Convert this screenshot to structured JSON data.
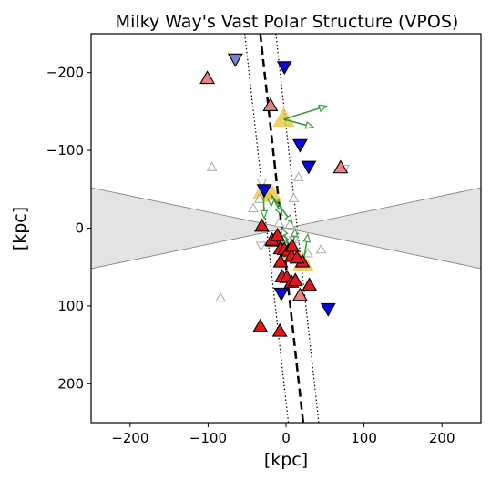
{
  "chart_data": {
    "type": "scatter",
    "title": "Milky Way's Vast Polar Structure (VPOS)",
    "xlabel": "[kpc]",
    "ylabel": "[kpc]",
    "xlim": [
      -250,
      250
    ],
    "ylim": [
      250,
      -250
    ],
    "y_inverted": true,
    "xticks": [
      -200,
      -100,
      0,
      100,
      200
    ],
    "yticks": [
      -200,
      -100,
      0,
      100,
      200
    ],
    "xtick_labels": [
      "−200",
      "−100",
      "0",
      "100",
      "200"
    ],
    "ytick_labels": [
      "−200",
      "−100",
      "0",
      "100",
      "200"
    ],
    "grid": false,
    "legend": "none",
    "obscured_region": {
      "color": "#e3e3e3",
      "left_edge_y": [
        -52,
        52
      ],
      "right_edge_y": [
        -52,
        52
      ],
      "apex": [
        0,
        0
      ]
    },
    "vpos_plane": {
      "center_line": [
        [
          -33,
          -250
        ],
        [
          22,
          250
        ]
      ],
      "boundary_lines": [
        [
          [
            -53,
            -250
          ],
          [
            3,
            250
          ]
        ],
        [
          [
            -13,
            -250
          ],
          [
            42,
            250
          ]
        ]
      ]
    },
    "colors": {
      "red": "#e3161b",
      "blue": "#0a0ad8",
      "faded_red": "#ea8080",
      "faded_blue": "#7a80d6",
      "open_marker": "#a9a9a9",
      "arrow": "#3a9f3a",
      "highlight": "#e8c23a"
    },
    "series": [
      {
        "name": "",
        "marker": "triangle-up-filled",
        "color": "red",
        "points": [
          [
            -31,
            -2
          ],
          [
            -17,
            17
          ],
          [
            -12,
            17
          ],
          [
            -7,
            27
          ],
          [
            -2,
            28
          ],
          [
            -7,
            44
          ],
          [
            3,
            30
          ],
          [
            7,
            37
          ],
          [
            -5,
            63
          ],
          [
            1,
            64
          ],
          [
            7,
            70
          ],
          [
            12,
            68
          ],
          [
            21,
            44
          ],
          [
            30,
            74
          ],
          [
            -33,
            127
          ],
          [
            -8,
            133
          ],
          [
            -18,
            16
          ],
          [
            -11,
            10
          ],
          [
            8,
            24
          ],
          [
            14,
            39
          ]
        ]
      },
      {
        "name": "",
        "marker": "triangle-down-filled",
        "color": "blue",
        "points": [
          [
            -2,
            -208
          ],
          [
            18,
            -108
          ],
          [
            29,
            -80
          ],
          [
            -6,
            83
          ],
          [
            54,
            103
          ],
          [
            -28,
            -50
          ]
        ]
      },
      {
        "name": "",
        "marker": "triangle-up-filled",
        "color": "faded_red",
        "points": [
          [
            -101,
            -192
          ],
          [
            -20,
            -157
          ],
          [
            70,
            -77
          ],
          [
            18,
            87
          ]
        ]
      },
      {
        "name": "",
        "marker": "triangle-down-filled",
        "color": "faded_blue",
        "points": [
          [
            -65,
            -218
          ]
        ]
      },
      {
        "name": "",
        "marker": "triangle-up-open",
        "color": "open_marker",
        "points": [
          [
            -95,
            -78
          ],
          [
            -34,
            -37
          ],
          [
            -42,
            -25
          ],
          [
            16,
            -65
          ],
          [
            10,
            -38
          ],
          [
            -9,
            -6
          ],
          [
            5,
            -4
          ],
          [
            -5,
            22
          ],
          [
            11,
            15
          ],
          [
            45,
            28
          ],
          [
            -84,
            90
          ],
          [
            28,
            33
          ]
        ]
      },
      {
        "name": "",
        "marker": "triangle-down-open",
        "color": "open_marker",
        "points": [
          [
            -31,
            -59
          ],
          [
            75,
            -77
          ],
          [
            -32,
            22
          ],
          [
            10,
            15
          ]
        ]
      }
    ],
    "highlighted_points": [
      [
        -3,
        -140
      ],
      [
        -29,
        -47
      ],
      [
        -19,
        -43
      ],
      [
        8,
        30
      ],
      [
        22,
        46
      ]
    ],
    "velocity_arrows": [
      {
        "from": [
          -3,
          -140
        ],
        "to": [
          52,
          -157
        ]
      },
      {
        "from": [
          -3,
          -140
        ],
        "to": [
          35,
          -130
        ]
      },
      {
        "from": [
          -29,
          -47
        ],
        "to": [
          -28,
          -13
        ]
      },
      {
        "from": [
          -19,
          -43
        ],
        "to": [
          -19,
          -28
        ]
      },
      {
        "from": [
          -19,
          -43
        ],
        "to": [
          -5,
          -17
        ]
      },
      {
        "from": [
          -19,
          -43
        ],
        "to": [
          8,
          -7
        ]
      },
      {
        "from": [
          8,
          30
        ],
        "to": [
          12,
          1
        ]
      },
      {
        "from": [
          8,
          30
        ],
        "to": [
          -5,
          9
        ]
      },
      {
        "from": [
          8,
          30
        ],
        "to": [
          -6,
          0
        ]
      },
      {
        "from": [
          22,
          46
        ],
        "to": [
          28,
          8
        ]
      }
    ]
  }
}
